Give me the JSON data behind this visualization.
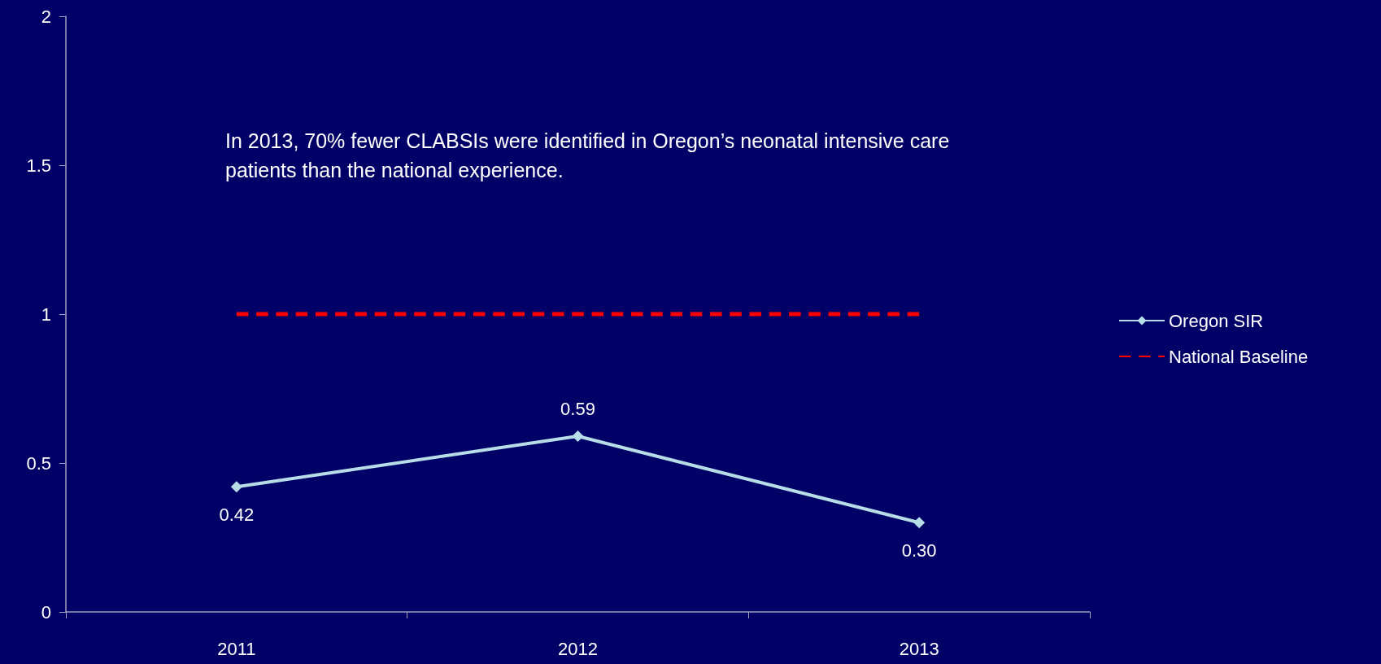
{
  "chart_data": {
    "type": "line",
    "categories": [
      "2011",
      "2012",
      "2013"
    ],
    "series": [
      {
        "name": "Oregon SIR",
        "color": "#b7dee8",
        "values": [
          0.42,
          0.59,
          0.3
        ],
        "value_labels": [
          "0.42",
          "0.59",
          "0.30"
        ],
        "marker": "diamond",
        "line_style": "solid"
      },
      {
        "name": "National Baseline",
        "color": "#ff0000",
        "values": [
          1,
          1,
          1
        ],
        "marker": "none",
        "line_style": "dashed"
      }
    ],
    "ylim": [
      0,
      2
    ],
    "yticks": [
      0,
      0.5,
      1,
      1.5,
      2
    ],
    "annotations": [
      "In 2013, 70% fewer CLABSIs were identified in Oregon’s neonatal intensive care patients than the national experience."
    ],
    "grid": false,
    "legend": "right"
  }
}
